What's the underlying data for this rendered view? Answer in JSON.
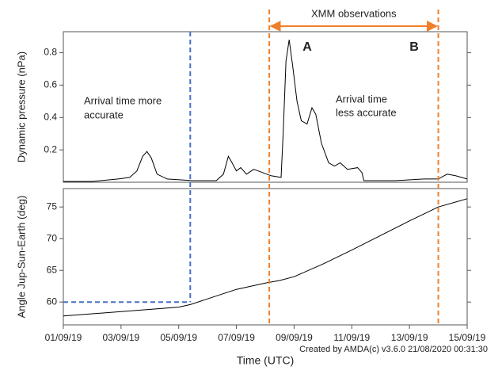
{
  "chart_data": [
    {
      "type": "line",
      "ylabel": "Dynamic pressure (nPa)",
      "color": "#000000",
      "xlim": [
        0,
        14
      ],
      "ylim": [
        0,
        0.93
      ],
      "yticks": [
        0.2,
        0.4,
        0.6,
        0.8
      ],
      "x": [
        0,
        1,
        1.9,
        2.3,
        2.55,
        2.75,
        2.9,
        3.05,
        3.25,
        3.6,
        4.5,
        5.3,
        5.55,
        5.72,
        5.85,
        6.0,
        6.15,
        6.35,
        6.6,
        6.9,
        7.2,
        7.55,
        7.62,
        7.72,
        7.83,
        7.95,
        8.1,
        8.25,
        8.45,
        8.62,
        8.75,
        8.95,
        9.2,
        9.4,
        9.6,
        9.85,
        10.2,
        10.35,
        10.42,
        11.5,
        12.5,
        13.0,
        13.3,
        13.6,
        14
      ],
      "values": [
        0.005,
        0.005,
        0.02,
        0.03,
        0.07,
        0.16,
        0.19,
        0.15,
        0.05,
        0.02,
        0.01,
        0.01,
        0.05,
        0.16,
        0.12,
        0.07,
        0.09,
        0.05,
        0.08,
        0.06,
        0.04,
        0.03,
        0.3,
        0.75,
        0.88,
        0.72,
        0.5,
        0.38,
        0.36,
        0.46,
        0.42,
        0.24,
        0.12,
        0.1,
        0.12,
        0.08,
        0.09,
        0.06,
        0.01,
        0.01,
        0.02,
        0.02,
        0.05,
        0.04,
        0.02
      ],
      "annotations": [
        [
          "Arrival time more",
          "accurate"
        ],
        [
          "Arrival time",
          "less accurate"
        ],
        "A",
        "B"
      ],
      "span_label": "XMM observations"
    },
    {
      "type": "line",
      "ylabel": "Angle Jup-Sun-Earth (deg)",
      "xlabel": "Time (UTC)",
      "color": "#000000",
      "xlim": [
        0,
        14
      ],
      "ylim": [
        56.4,
        77.9
      ],
      "yticks": [
        60,
        65,
        70,
        75
      ],
      "xticks": [
        {
          "value": 0,
          "label": "01/09/19"
        },
        {
          "value": 2,
          "label": "03/09/19"
        },
        {
          "value": 4,
          "label": "05/09/19"
        },
        {
          "value": 6,
          "label": "07/09/19"
        },
        {
          "value": 8,
          "label": "09/09/19"
        },
        {
          "value": 10,
          "label": "11/09/19"
        },
        {
          "value": 12,
          "label": "13/09/19"
        },
        {
          "value": 14,
          "label": "15/09/19"
        }
      ],
      "x": [
        0,
        2,
        4,
        4.4,
        5,
        6,
        7,
        7.5,
        8,
        9,
        10,
        11,
        12,
        13,
        14
      ],
      "values": [
        57.8,
        58.5,
        59.2,
        59.6,
        60.5,
        62,
        63,
        63.4,
        64,
        66,
        68.2,
        70.5,
        72.8,
        75,
        76.3
      ],
      "hline": {
        "y": 60,
        "x_end": 4.4,
        "color": "#4472c4"
      }
    },
    {
      "type": "vlines",
      "x": [
        4.4,
        7.14,
        13.0
      ],
      "colors": [
        "#4472c4",
        "#f07f2a",
        "#f07f2a"
      ]
    }
  ],
  "footer": "Created by AMDA(c) v3.6.0 21/08/2020 00:31:30"
}
